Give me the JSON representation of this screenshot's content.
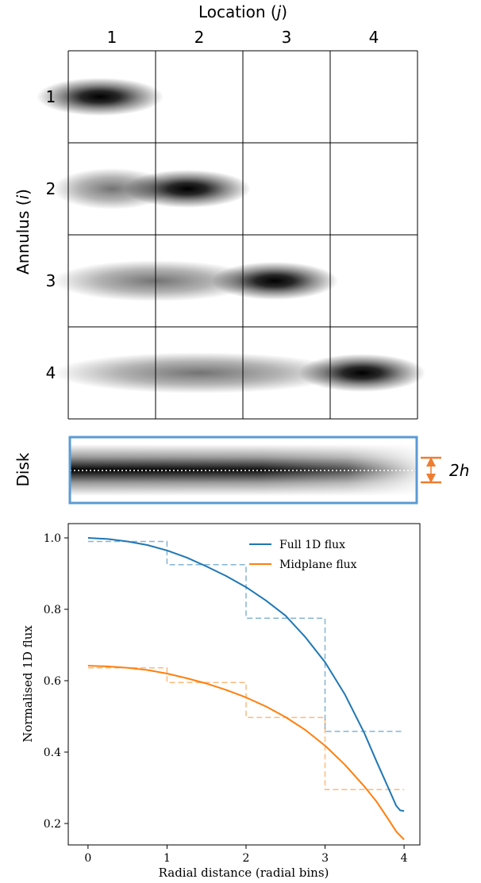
{
  "grid": {
    "title_text": "Location (",
    "title_var": "j",
    "title_close": ")",
    "row_title_text": "Annulus (",
    "row_title_var": "i",
    "row_title_close": ")",
    "column_labels": [
      "1",
      "2",
      "3",
      "4"
    ],
    "row_labels": [
      "1",
      "2",
      "3",
      "4"
    ]
  },
  "disk": {
    "label": "Disk",
    "height_label": "2h",
    "frame_color": "#5b9bd5",
    "arrow_color": "#ed7d31"
  },
  "chart_data": {
    "type": "line",
    "xlabel": "Radial distance (radial bins)",
    "ylabel": "Normalised 1D flux",
    "xlim": [
      -0.25,
      4.2
    ],
    "ylim": [
      0.14,
      1.04
    ],
    "xticks": [
      "0",
      "1",
      "2",
      "3",
      "4"
    ],
    "yticks": [
      "0.2",
      "0.4",
      "0.6",
      "0.8",
      "1.0"
    ],
    "legend": "top-right",
    "grid": false,
    "series": [
      {
        "name": "Full 1D flux",
        "color": "#1f77b4",
        "style": "solid",
        "x": [
          0,
          0.25,
          0.5,
          0.75,
          1.0,
          1.25,
          1.5,
          1.75,
          2.0,
          2.25,
          2.5,
          2.75,
          3.0,
          3.25,
          3.5,
          3.65,
          3.8,
          3.9,
          3.95,
          4.0
        ],
        "y": [
          1.0,
          0.997,
          0.99,
          0.98,
          0.965,
          0.945,
          0.92,
          0.893,
          0.862,
          0.825,
          0.782,
          0.722,
          0.652,
          0.562,
          0.452,
          0.375,
          0.3,
          0.25,
          0.237,
          0.235
        ]
      },
      {
        "name": "Midplane flux",
        "color": "#ff7f0e",
        "style": "solid",
        "x": [
          0,
          0.25,
          0.5,
          0.75,
          1.0,
          1.25,
          1.5,
          1.75,
          2.0,
          2.25,
          2.5,
          2.75,
          3.0,
          3.25,
          3.5,
          3.65,
          3.8,
          3.9,
          4.0
        ],
        "y": [
          0.642,
          0.64,
          0.636,
          0.63,
          0.62,
          0.607,
          0.592,
          0.574,
          0.553,
          0.528,
          0.498,
          0.462,
          0.418,
          0.365,
          0.303,
          0.262,
          0.212,
          0.178,
          0.155
        ]
      },
      {
        "name": "",
        "color": "#1f77b4",
        "style": "dashed",
        "x": [
          0,
          1,
          1,
          2,
          2,
          3,
          3,
          4
        ],
        "y": [
          0.99,
          0.99,
          0.925,
          0.925,
          0.775,
          0.775,
          0.458,
          0.458
        ]
      },
      {
        "name": "",
        "color": "#ff7f0e",
        "style": "dashed",
        "x": [
          0,
          1,
          1,
          2,
          2,
          3,
          3,
          4
        ],
        "y": [
          0.636,
          0.636,
          0.595,
          0.595,
          0.497,
          0.497,
          0.295,
          0.295
        ]
      }
    ]
  }
}
